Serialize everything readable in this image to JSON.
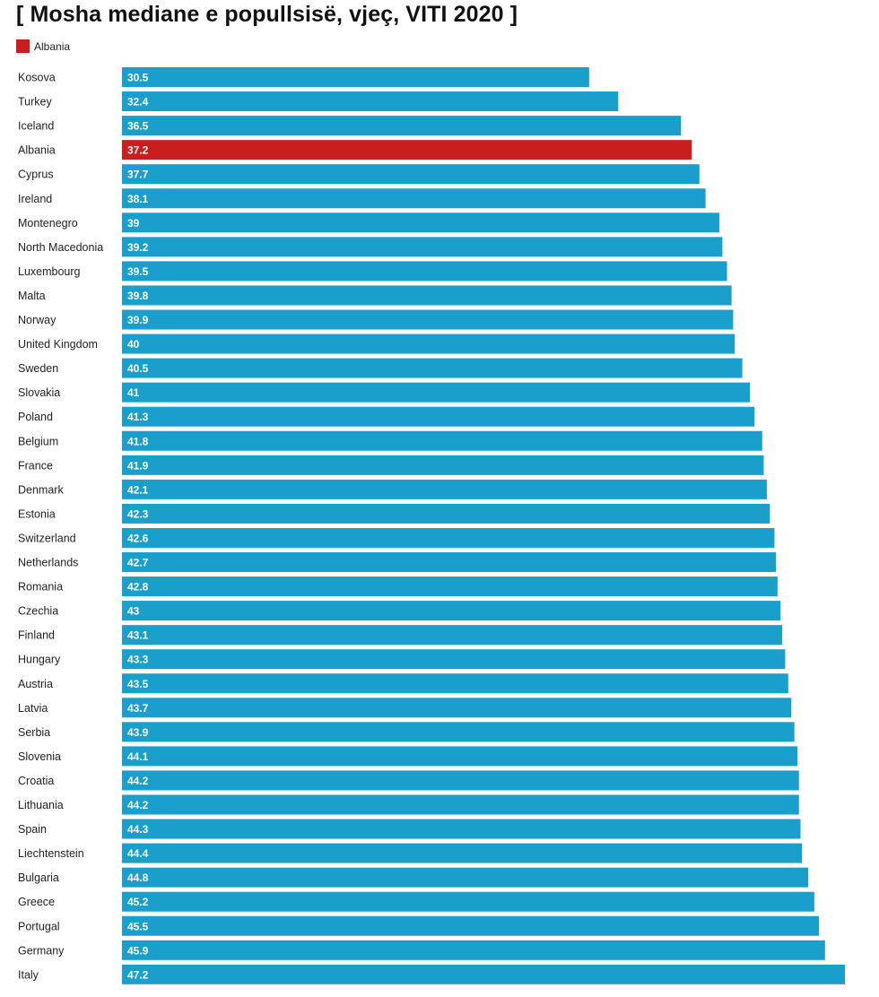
{
  "chart_data": {
    "type": "bar",
    "orientation": "horizontal",
    "title": "[ Mosha mediane e popullsisë, vjeç, VITI 2020 ]",
    "legend": [
      {
        "label": "Albania",
        "color": "#c81e1e"
      }
    ],
    "default_color": "#1a9fcc",
    "highlight_color": "#c81e1e",
    "highlight_category": "Albania",
    "xlim": [
      0,
      47.2
    ],
    "categories": [
      "Kosova",
      "Turkey",
      "Iceland",
      "Albania",
      "Cyprus",
      "Ireland",
      "Montenegro",
      "North Macedonia",
      "Luxembourg",
      "Malta",
      "Norway",
      "United Kingdom",
      "Sweden",
      "Slovakia",
      "Poland",
      "Belgium",
      "France",
      "Denmark",
      "Estonia",
      "Switzerland",
      "Netherlands",
      "Romania",
      "Czechia",
      "Finland",
      "Hungary",
      "Austria",
      "Latvia",
      "Serbia",
      "Slovenia",
      "Croatia",
      "Lithuania",
      "Spain",
      "Liechtenstein",
      "Bulgaria",
      "Greece",
      "Portugal",
      "Germany",
      "Italy"
    ],
    "values": [
      30.5,
      32.4,
      36.5,
      37.2,
      37.7,
      38.1,
      39,
      39.2,
      39.5,
      39.8,
      39.9,
      40,
      40.5,
      41,
      41.3,
      41.8,
      41.9,
      42.1,
      42.3,
      42.6,
      42.7,
      42.8,
      43,
      43.1,
      43.3,
      43.5,
      43.7,
      43.9,
      44.1,
      44.2,
      44.2,
      44.3,
      44.4,
      44.8,
      45.2,
      45.5,
      45.9,
      47.2
    ],
    "value_labels": [
      "30.5",
      "32.4",
      "36.5",
      "37.2",
      "37.7",
      "38.1",
      "39",
      "39.2",
      "39.5",
      "39.8",
      "39.9",
      "40",
      "40.5",
      "41",
      "41.3",
      "41.8",
      "41.9",
      "42.1",
      "42.3",
      "42.6",
      "42.7",
      "42.8",
      "43",
      "43.1",
      "43.3",
      "43.5",
      "43.7",
      "43.9",
      "44.1",
      "44.2",
      "44.2",
      "44.3",
      "44.4",
      "44.8",
      "45.2",
      "45.5",
      "45.9",
      "47.2"
    ]
  }
}
